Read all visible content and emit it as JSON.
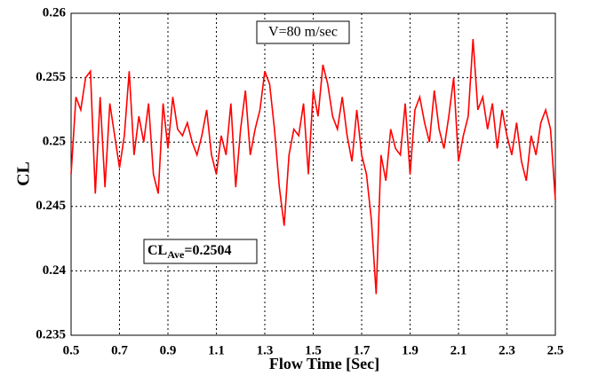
{
  "chart_data": {
    "type": "line",
    "xlabel": "Flow Time  [Sec]",
    "ylabel": "CL",
    "annotations": [
      {
        "text": "V=80 m/sec"
      },
      {
        "text": "CL",
        "subscript": "Ave",
        "suffix": "=0.2504"
      }
    ],
    "xlim": [
      0.5,
      2.5
    ],
    "xticks": [
      0.5,
      0.7,
      0.9,
      1.1,
      1.3,
      1.5,
      1.7,
      1.9,
      2.1,
      2.3,
      2.5
    ],
    "ylim": [
      0.235,
      0.26
    ],
    "yticks": [
      0.235,
      0.24,
      0.245,
      0.25,
      0.255,
      0.26
    ],
    "grid": true,
    "x": [
      0.5,
      0.52,
      0.54,
      0.56,
      0.58,
      0.6,
      0.62,
      0.64,
      0.66,
      0.68,
      0.7,
      0.72,
      0.74,
      0.76,
      0.78,
      0.8,
      0.82,
      0.84,
      0.86,
      0.88,
      0.9,
      0.92,
      0.94,
      0.96,
      0.98,
      1.0,
      1.02,
      1.04,
      1.06,
      1.08,
      1.1,
      1.12,
      1.14,
      1.16,
      1.18,
      1.2,
      1.22,
      1.24,
      1.26,
      1.28,
      1.3,
      1.32,
      1.34,
      1.36,
      1.38,
      1.4,
      1.42,
      1.44,
      1.46,
      1.48,
      1.5,
      1.52,
      1.54,
      1.56,
      1.58,
      1.6,
      1.62,
      1.64,
      1.66,
      1.68,
      1.7,
      1.72,
      1.74,
      1.76,
      1.78,
      1.8,
      1.82,
      1.84,
      1.86,
      1.88,
      1.9,
      1.92,
      1.94,
      1.96,
      1.98,
      2.0,
      2.02,
      2.04,
      2.06,
      2.08,
      2.1,
      2.12,
      2.14,
      2.16,
      2.18,
      2.2,
      2.22,
      2.24,
      2.26,
      2.28,
      2.3,
      2.32,
      2.34,
      2.36,
      2.38,
      2.4,
      2.42,
      2.44,
      2.46,
      2.48,
      2.5
    ],
    "series": [
      {
        "name": "CL",
        "color": "#ff0000",
        "values": [
          0.2475,
          0.2535,
          0.2525,
          0.255,
          0.2555,
          0.246,
          0.2535,
          0.2465,
          0.253,
          0.2505,
          0.248,
          0.2505,
          0.2555,
          0.249,
          0.252,
          0.25,
          0.253,
          0.2475,
          0.246,
          0.253,
          0.2495,
          0.2535,
          0.251,
          0.2505,
          0.2515,
          0.25,
          0.249,
          0.2505,
          0.2525,
          0.249,
          0.2475,
          0.2505,
          0.249,
          0.253,
          0.2465,
          0.251,
          0.254,
          0.249,
          0.251,
          0.2525,
          0.2555,
          0.2545,
          0.251,
          0.2465,
          0.2435,
          0.249,
          0.251,
          0.2505,
          0.253,
          0.2475,
          0.254,
          0.252,
          0.256,
          0.2545,
          0.252,
          0.251,
          0.2535,
          0.2505,
          0.2485,
          0.2525,
          0.249,
          0.2475,
          0.244,
          0.2382,
          0.249,
          0.247,
          0.251,
          0.2495,
          0.249,
          0.253,
          0.2475,
          0.2525,
          0.2535,
          0.2515,
          0.25,
          0.254,
          0.251,
          0.2495,
          0.252,
          0.255,
          0.2485,
          0.2505,
          0.252,
          0.258,
          0.2525,
          0.2535,
          0.251,
          0.253,
          0.2495,
          0.2525,
          0.2505,
          0.249,
          0.2515,
          0.2485,
          0.247,
          0.2505,
          0.249,
          0.2515,
          0.2525,
          0.251,
          0.2455
        ]
      }
    ]
  }
}
